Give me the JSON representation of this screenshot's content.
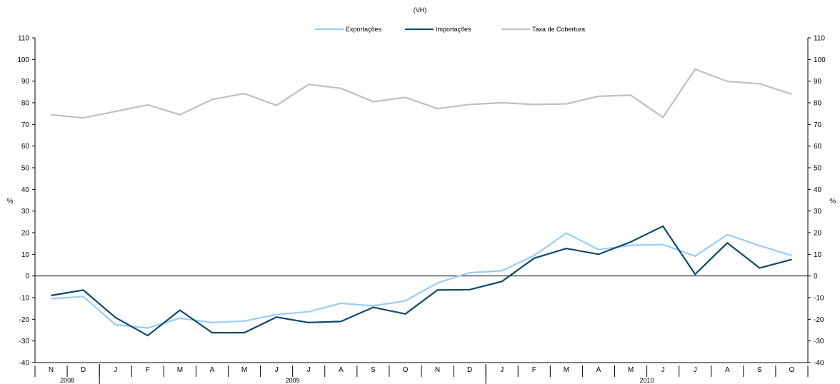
{
  "chart_data": {
    "type": "line",
    "subtitle": "(VH)",
    "ylabel_left": "%",
    "ylabel_right": "%",
    "ylim": [
      -40,
      110
    ],
    "yticks": [
      -40,
      -30,
      -20,
      -10,
      0,
      10,
      20,
      30,
      40,
      50,
      60,
      70,
      80,
      90,
      100,
      110
    ],
    "grid": false,
    "legend_position": "top",
    "months": [
      "N",
      "D",
      "J",
      "F",
      "M",
      "A",
      "M",
      "J",
      "J",
      "A",
      "S",
      "O",
      "N",
      "D",
      "J",
      "F",
      "M",
      "A",
      "M",
      "J",
      "J",
      "A",
      "S",
      "O"
    ],
    "years": [
      {
        "label": "2008",
        "start": 0,
        "end": 1
      },
      {
        "label": "2009",
        "start": 2,
        "end": 13
      },
      {
        "label": "2010",
        "start": 14,
        "end": 23
      }
    ],
    "series": [
      {
        "name": "Exportações",
        "color": "#99ccff",
        "values": [
          -10.5,
          -9.5,
          -22.5,
          -24,
          -19.5,
          -21.5,
          -20.8,
          -17.8,
          -16.5,
          -12.6,
          -13.8,
          -11.5,
          -3.2,
          1.5,
          2.4,
          9.5,
          19.8,
          12.2,
          14.2,
          14.5,
          9.2,
          19.1,
          14.0,
          9.5
        ]
      },
      {
        "name": "Importações",
        "color": "#0f4a63",
        "values": [
          -9.0,
          -6.5,
          -19.2,
          -27.5,
          -15.8,
          -26.2,
          -26.2,
          -19.0,
          -21.5,
          -21.0,
          -14.5,
          -17.5,
          -6.5,
          -6.3,
          -2.5,
          8.2,
          12.7,
          10.0,
          15.7,
          23.0,
          0.8,
          15.3,
          3.7,
          7.6
        ]
      },
      {
        "name": "Taxa de Cobertura",
        "color": "#c0c0c0",
        "values": [
          74.5,
          73,
          76,
          79,
          74.5,
          81.5,
          84.3,
          78.8,
          88.5,
          86.7,
          80.5,
          82.5,
          77.3,
          79.2,
          80,
          79.2,
          79.5,
          83,
          83.5,
          73.3,
          95.5,
          89.9,
          88.8,
          84
        ]
      }
    ]
  }
}
